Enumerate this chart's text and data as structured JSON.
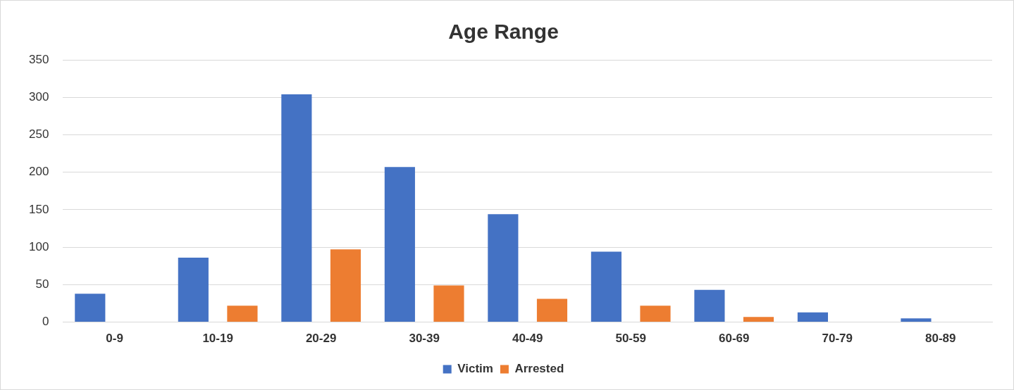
{
  "chart_data": {
    "type": "bar",
    "title": "Age Range",
    "categories": [
      "0-9",
      "10-19",
      "20-29",
      "30-39",
      "40-49",
      "50-59",
      "60-69",
      "70-79",
      "80-89"
    ],
    "series": [
      {
        "name": "Victim",
        "color": "#4472c4",
        "values": [
          38,
          86,
          304,
          207,
          144,
          94,
          43,
          13,
          5
        ]
      },
      {
        "name": "Arrested",
        "color": "#ed7d31",
        "values": [
          0,
          22,
          97,
          49,
          31,
          22,
          7,
          0,
          0
        ]
      }
    ],
    "ylim": [
      0,
      350
    ],
    "yticks": [
      0,
      50,
      100,
      150,
      200,
      250,
      300,
      350
    ],
    "grid": "y",
    "legend": "bottom"
  }
}
